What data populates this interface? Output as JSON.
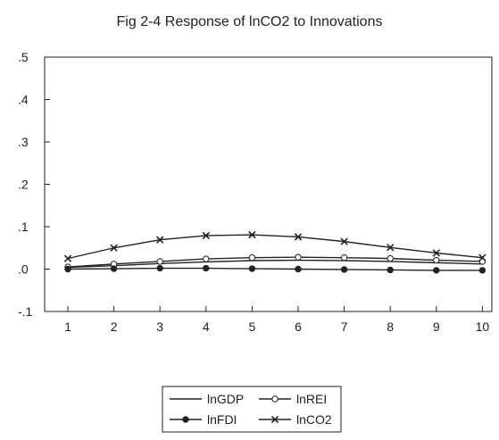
{
  "chart_data": {
    "type": "line",
    "title": "Fig 2-4 Response of lnCO2 to Innovations",
    "xlabel": "",
    "ylabel": "",
    "x": [
      1,
      2,
      3,
      4,
      5,
      6,
      7,
      8,
      9,
      10
    ],
    "ylim": [
      -0.1,
      0.5
    ],
    "y_ticks": [
      ".5",
      ".4",
      ".3",
      ".2",
      ".1",
      ".0",
      "-.1"
    ],
    "y_tick_values": [
      0.5,
      0.4,
      0.3,
      0.2,
      0.1,
      0.0,
      -0.1
    ],
    "x_ticks": [
      "1",
      "2",
      "3",
      "4",
      "5",
      "6",
      "7",
      "8",
      "9",
      "10"
    ],
    "grid": false,
    "legend_position": "bottom-center",
    "series": [
      {
        "name": "lnGDP",
        "marker": "none",
        "color": "#222222",
        "values": [
          0.004,
          0.008,
          0.013,
          0.017,
          0.02,
          0.021,
          0.02,
          0.018,
          0.015,
          0.012
        ]
      },
      {
        "name": "lnREI",
        "marker": "open-circle",
        "color": "#222222",
        "values": [
          0.005,
          0.012,
          0.018,
          0.024,
          0.027,
          0.028,
          0.027,
          0.025,
          0.021,
          0.018
        ]
      },
      {
        "name": "lnFDI",
        "marker": "filled-circle",
        "color": "#222222",
        "values": [
          0.0,
          0.001,
          0.002,
          0.002,
          0.001,
          0.0,
          -0.001,
          -0.002,
          -0.003,
          -0.003
        ]
      },
      {
        "name": "lnCO2",
        "marker": "x",
        "color": "#222222",
        "values": [
          0.025,
          0.05,
          0.069,
          0.079,
          0.081,
          0.076,
          0.065,
          0.051,
          0.038,
          0.027
        ]
      }
    ]
  }
}
